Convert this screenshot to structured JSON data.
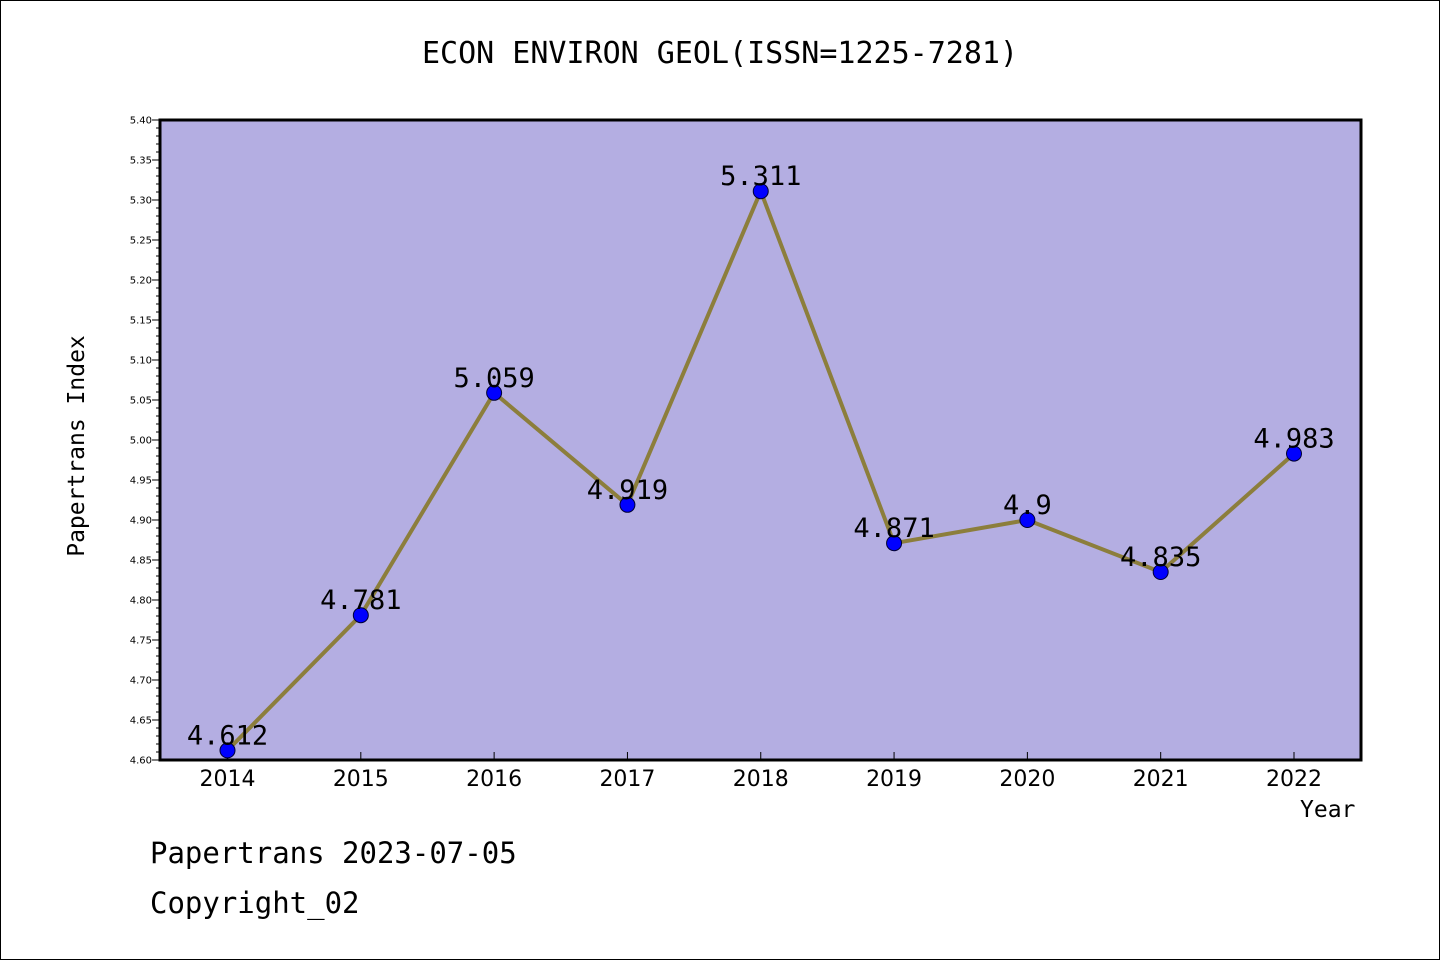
{
  "header": {
    "title": "ECON ENVIRON GEOL(ISSN=1225-7281)"
  },
  "footer": {
    "line1": "Papertrans 2023-07-05",
    "line2": "Copyright_02"
  },
  "chart_data": {
    "type": "line",
    "title": "ECON ENVIRON GEOL(ISSN=1225-7281)",
    "xlabel": "Year",
    "ylabel": "Papertrans Index",
    "categories": [
      "2014",
      "2015",
      "2016",
      "2017",
      "2018",
      "2019",
      "2020",
      "2021",
      "2022"
    ],
    "series": [
      {
        "values": [
          4.612,
          4.781,
          5.059,
          4.919,
          5.311,
          4.871,
          4.9,
          4.835,
          4.983
        ]
      }
    ],
    "data_labels": [
      "4.612",
      "4.781",
      "5.059",
      "4.919",
      "5.311",
      "4.871",
      "4.9",
      "4.835",
      "4.983"
    ],
    "ylim": [
      4.6,
      5.4
    ],
    "yticks": [
      "4.60",
      "4.65",
      "4.70",
      "4.75",
      "4.80",
      "4.85",
      "4.90",
      "4.95",
      "5.00",
      "5.05",
      "5.10",
      "5.15",
      "5.20",
      "5.25",
      "5.30",
      "5.35",
      "5.40"
    ],
    "grid": false,
    "colors": {
      "plot_background": "#b4aee2",
      "line": "#8c7e3c",
      "marker": "#0000ff"
    }
  }
}
